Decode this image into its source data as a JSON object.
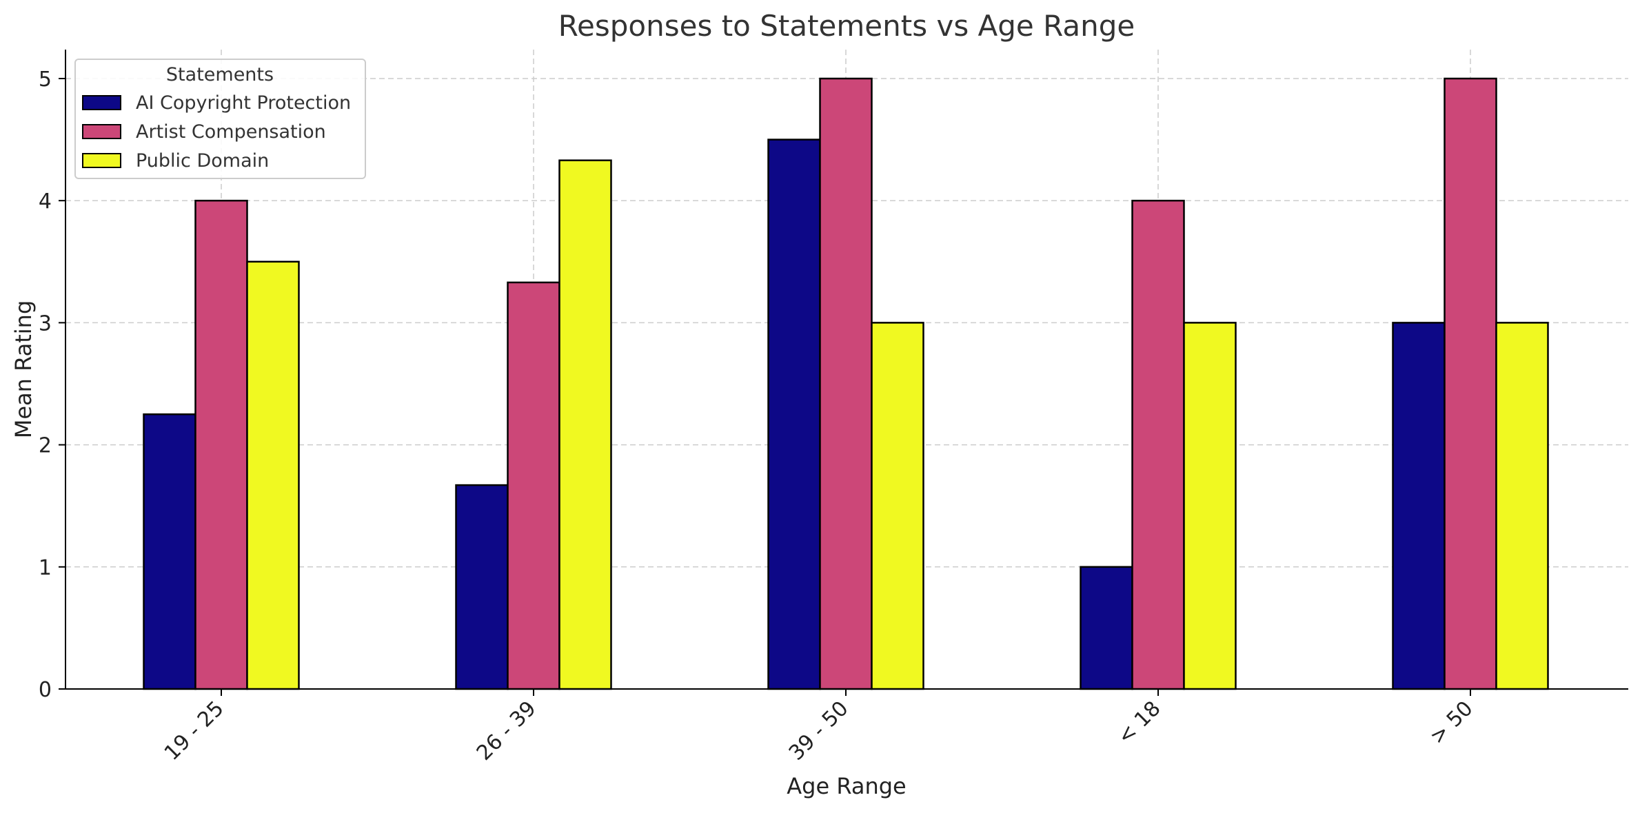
{
  "chart_data": {
    "type": "bar",
    "title": "Responses to Statements vs Age Range",
    "xlabel": "Age Range",
    "ylabel": "Mean Rating",
    "categories": [
      "19 - 25",
      "26 - 39",
      "39 - 50",
      "< 18",
      "> 50"
    ],
    "series": [
      {
        "name": "AI Copyright Protection",
        "color": "#0d0887",
        "values": [
          2.25,
          1.67,
          4.5,
          1.0,
          3.0
        ]
      },
      {
        "name": "Artist Compensation",
        "color": "#cc4778",
        "values": [
          4.0,
          3.33,
          5.0,
          4.0,
          5.0
        ]
      },
      {
        "name": "Public Domain",
        "color": "#f0f921",
        "values": [
          3.5,
          4.33,
          3.0,
          3.0,
          3.0
        ]
      }
    ],
    "ylim": [
      0,
      5.25
    ],
    "yticks": [
      0,
      1,
      2,
      3,
      4,
      5
    ],
    "grid": true,
    "legend": {
      "title": "Statements",
      "position": "top-left"
    }
  }
}
